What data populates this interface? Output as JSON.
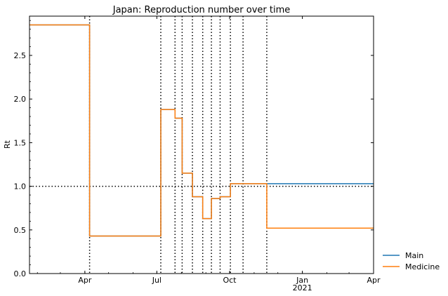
{
  "chart_data": {
    "type": "line",
    "title": "Japan: Reproduction number over time",
    "xlabel": "",
    "ylabel": "Rt",
    "ylim": [
      0,
      2.95
    ],
    "xlim": [
      "2020-01-22",
      "2021-04-01"
    ],
    "yticks": [
      0.0,
      0.5,
      1.0,
      1.5,
      2.0,
      2.5
    ],
    "ytick_labels": [
      "0.0",
      "0.5",
      "1.0",
      "1.5",
      "2.0",
      "2.5"
    ],
    "xticks": [
      {
        "date": "2020-04-01",
        "label": "Apr",
        "sublabel": ""
      },
      {
        "date": "2020-07-01",
        "label": "Jul",
        "sublabel": ""
      },
      {
        "date": "2020-10-01",
        "label": "Oct",
        "sublabel": ""
      },
      {
        "date": "2021-01-01",
        "label": "Jan",
        "sublabel": "2021"
      },
      {
        "date": "2021-04-01",
        "label": "Apr",
        "sublabel": ""
      }
    ],
    "reference_line": {
      "y": 1.0,
      "style": "dotted",
      "color": "#000000"
    },
    "change_dates": [
      "2020-04-07",
      "2020-07-06",
      "2020-07-24",
      "2020-08-02",
      "2020-08-15",
      "2020-08-28",
      "2020-09-08",
      "2020-09-19",
      "2020-10-02",
      "2020-10-18",
      "2020-11-17"
    ],
    "series": [
      {
        "name": "Main",
        "color": "#1f77b4",
        "step": "post",
        "x": [
          "2020-01-22",
          "2020-04-07",
          "2020-07-06",
          "2020-07-24",
          "2020-08-02",
          "2020-08-15",
          "2020-08-28",
          "2020-09-08",
          "2020-09-19",
          "2020-10-02",
          "2020-11-17",
          "2021-04-01"
        ],
        "y": [
          2.85,
          0.43,
          1.88,
          1.78,
          1.15,
          0.88,
          0.63,
          0.86,
          0.88,
          1.03,
          1.03,
          1.03
        ]
      },
      {
        "name": "Medicine",
        "color": "#ff7f0e",
        "step": "post",
        "x": [
          "2020-01-22",
          "2020-04-07",
          "2020-07-06",
          "2020-07-24",
          "2020-08-02",
          "2020-08-15",
          "2020-08-28",
          "2020-09-08",
          "2020-09-19",
          "2020-10-02",
          "2020-11-17",
          "2021-04-01"
        ],
        "y": [
          2.85,
          0.43,
          1.88,
          1.78,
          1.15,
          0.88,
          0.63,
          0.86,
          0.88,
          1.03,
          0.52,
          0.52
        ]
      }
    ],
    "legend": {
      "position": "outside-bottom-right"
    },
    "grid": false
  }
}
